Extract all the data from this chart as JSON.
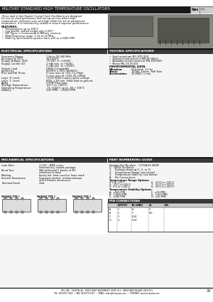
{
  "title": "MILITARY STANDARD HIGH TEMPERATURE OSCILLATORS",
  "intro_text_lines": [
    "These dual in line Quartz Crystal Clock Oscillators are designed",
    "for use as clock generators and timing sources where high",
    "temperature, miniature size, and high reliability are of paramount",
    "importance. It is hermetically sealed to assure superior performance."
  ],
  "features_title": "FEATURES:",
  "features": [
    "Temperatures up to 300°C",
    "Low profile: seated height only 0.200\"",
    "DIP Types in Commercial & Military versions",
    "Wide frequency range: 1 Hz to 25 MHz",
    "Stability specification options from ±20 to ±1000 PPM"
  ],
  "elec_spec_title": "ELECTRICAL SPECIFICATIONS",
  "elec_specs": [
    [
      "Frequency Range",
      "1 Hz to 25.000 MHz"
    ],
    [
      "Accuracy @ 25°C",
      "±0.0015%"
    ],
    [
      "Supply Voltage, VDD",
      "+5 VDC to +15VDC"
    ],
    [
      "Supply Current (D)",
      "1 mA max. at +5VDC"
    ],
    [
      "",
      "5 mA max. at +15VDC"
    ],
    [
      "Output Load",
      "CMOS Compatible"
    ],
    [
      "Symmetry",
      "50/50% ± 10% (40/60%)"
    ],
    [
      "Rise and Fall Times",
      "5 nsec max at +5V, CL=50pF"
    ],
    [
      "",
      "5 nsec max at +15V, RL=200Ω"
    ],
    [
      "Logic '0' Level",
      "+0.5V 50kΩ Load to input voltage"
    ],
    [
      "Logic '1' Level",
      "VDD- 1.0V min. 50kΩ load to ground"
    ],
    [
      "Aging",
      "5 PPM /Year max."
    ],
    [
      "Storage Temperature",
      "-65°C to +300°C"
    ],
    [
      "Operating Temperature",
      "-25 +154°C up to -55 + 300°C"
    ],
    [
      "Stability",
      "±20 PPM ~ ±1000 PPM"
    ]
  ],
  "test_spec_title": "TESTING SPECIFICATIONS",
  "test_specs": [
    "Seal tested per MIL-STD-202",
    "Hybrid construction to MIL-M-38510",
    "Available screen tested to MIL-STD-883",
    "Meets MIL-55-55310"
  ],
  "env_title": "ENVIRONMENTAL DATA",
  "env_specs": [
    [
      "Vibration:",
      "50G Peak, 2 k-hz"
    ],
    [
      "Shock:",
      "10000, 1msec, Half Sine"
    ],
    [
      "Acceleration:",
      "10,0000, 1 min."
    ]
  ],
  "mech_spec_title": "MECHANICAL SPECIFICATIONS",
  "part_num_title": "PART NUMBERING GUIDE",
  "mech_specs": [
    [
      "Leak Rate",
      "1 (10)⁻⁷ ATM cc/sec",
      "Hermetically sealed package"
    ],
    [
      "Bend Test",
      "Will withstand 2 bends of 90°",
      "reference to base"
    ],
    [
      "Marking",
      "Epoxy ink, heat cured or laser mark"
    ],
    [
      "Solvent Resistance",
      "Isopropyl alcohol, trichloroethane,",
      "and 5 minute immersion"
    ],
    [
      "Terminal Finish",
      "Gold"
    ]
  ],
  "part_num_text": [
    "Sample Part Number:   C175A-25.000M",
    "C:  CMOS Oscillator",
    "1:    Package drawing (1, 2, or 3)",
    "7:    Temperature Range (see below)",
    "5:    Temperature Stability (see below)",
    "A:    Pin Connections"
  ],
  "temp_range_title": "Temperature Range Options:",
  "temp_ranges": [
    [
      "0°C to +70°C",
      "6:  -55°C to +125°C"
    ],
    [
      "4:  -25°C to +85°C",
      "7:  -55°C to +300°C"
    ],
    [
      "5:  0°C to +100°C",
      "8:  -85°C to +300°C"
    ]
  ],
  "stab_title": "Temperature Stability Options:",
  "stab_options": [
    [
      "A:  ±500 PPM",
      "F:  ±50 PPM"
    ],
    [
      "B:  ±1000 PPM",
      "G:  ±100 PPM"
    ],
    [
      "C:  ±200 PPM",
      "H:  ±20 PPM"
    ]
  ],
  "pin_conn_title": "PIN CONNECTIONS",
  "pin_table_header": [
    "",
    "OUTPUT",
    "B(+GND)",
    "4+",
    "N.C."
  ],
  "pin_table_rows": [
    [
      "A",
      "1",
      "8",
      "5"
    ],
    [
      "B",
      "2",
      "7",
      "N.C."
    ],
    [
      "C",
      "3",
      "6-14",
      ""
    ],
    [
      "D",
      "4",
      "5-14",
      ""
    ]
  ],
  "pkg_type_titles": [
    "PACKAGE TYPE 1",
    "PACKAGE TYPE 2",
    "PACKAGE TYPE 3"
  ],
  "footer_line1": "HEC, INC.  GOLETA CA • 30901 WEST AGOURA RD, SUITE 311 • WESTLAKE VILLAGE CA 91361",
  "footer_line2": "TEL: 818-879-7414  •  FAX: 818-879-7417  •  EMAIL: sales@horayusa.com  •  INTERNET: www.horayusa.com",
  "page_num": "33",
  "header_bg": "#1a1a1a",
  "section_bar_bg": "#3a3a3a",
  "white": "#ffffff",
  "light_gray": "#e8e8e8",
  "mid_gray": "#aaaaaa",
  "black": "#000000",
  "body_bg": "#f5f5f5"
}
